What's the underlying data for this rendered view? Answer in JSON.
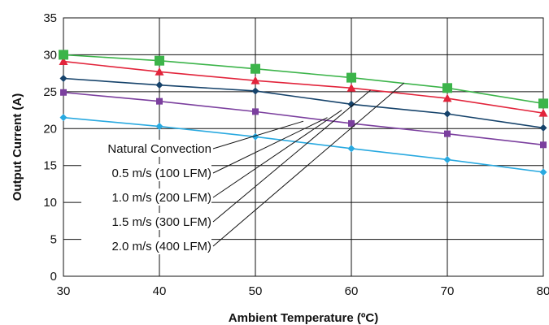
{
  "chart_data": {
    "type": "line",
    "xlabel": "Ambient Temperature (ºC)",
    "ylabel": "Output Current (A)",
    "xlim": [
      30,
      80
    ],
    "ylim": [
      0,
      35
    ],
    "x_ticks": [
      "30",
      "40",
      "50",
      "60",
      "70",
      "80"
    ],
    "y_ticks": [
      "0",
      "5",
      "10",
      "15",
      "20",
      "25",
      "30",
      "35"
    ],
    "grid": true,
    "x": [
      30,
      40,
      50,
      60,
      70,
      80
    ],
    "series": [
      {
        "name": "Natural Convection",
        "color": "#29a9e0",
        "marker": "diamond",
        "values": [
          21.5,
          20.3,
          18.9,
          17.3,
          15.8,
          14.1
        ]
      },
      {
        "name": "0.5 m/s (100 LFM)",
        "color": "#7b3f9e",
        "marker": "square",
        "values": [
          24.9,
          23.7,
          22.3,
          20.7,
          19.3,
          17.8
        ]
      },
      {
        "name": "1.0 m/s (200 LFM)",
        "color": "#16436b",
        "marker": "diamond",
        "values": [
          26.8,
          25.9,
          25.1,
          23.3,
          22.0,
          20.1
        ]
      },
      {
        "name": "1.5 m/s (300 LFM)",
        "color": "#e2243b",
        "marker": "triangle",
        "values": [
          29.1,
          27.7,
          26.5,
          25.5,
          24.1,
          22.1
        ]
      },
      {
        "name": "2.0 m/s (400 LFM)",
        "color": "#3cb44a",
        "marker": "square-large",
        "values": [
          30.0,
          29.2,
          28.1,
          26.9,
          25.5,
          23.4
        ]
      }
    ],
    "annotations": [
      {
        "text": "Natural Convection",
        "series": 0
      },
      {
        "text": "0.5 m/s (100 LFM)",
        "series": 1
      },
      {
        "text": "1.0 m/s (200 LFM)",
        "series": 2
      },
      {
        "text": "1.5 m/s (300 LFM)",
        "series": 3
      },
      {
        "text": "2.0 m/s (400 LFM)",
        "series": 4
      }
    ]
  }
}
